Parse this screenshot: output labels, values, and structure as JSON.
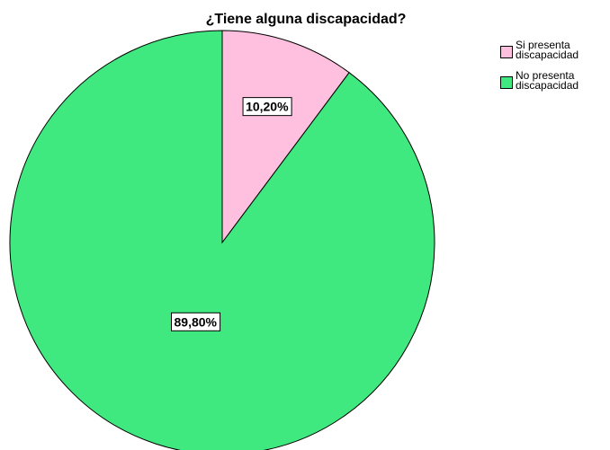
{
  "chart_data": {
    "type": "pie",
    "title": "¿Tiene alguna discapacidad?",
    "categories": [
      "Si presenta discapacidad",
      "No presenta discapacidad"
    ],
    "values": [
      10.2,
      89.8
    ],
    "value_labels": [
      "10,20%",
      "89,80%"
    ],
    "colors": [
      "#ffbfdf",
      "#3fe97f"
    ],
    "legend": "right"
  }
}
